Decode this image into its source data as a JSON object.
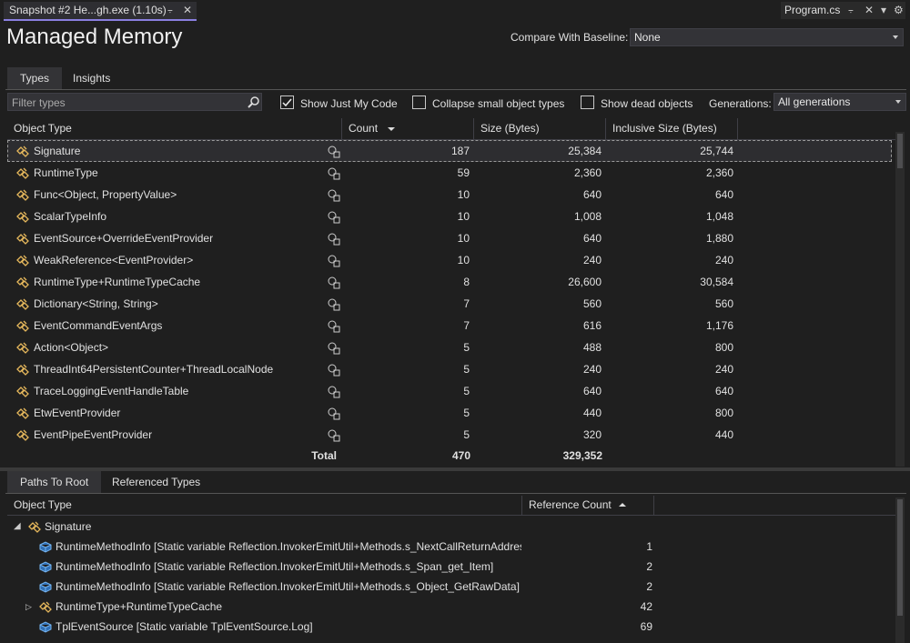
{
  "tabs": {
    "active": "Snapshot #2 He...gh.exe (1.10s)",
    "other": "Program.cs"
  },
  "title": "Managed Memory",
  "baseline": {
    "label": "Compare With Baseline:",
    "value": "None"
  },
  "view_tabs": [
    "Types",
    "Insights"
  ],
  "toolbar": {
    "filter_placeholder": "Filter types",
    "just_my_code": "Show Just My Code",
    "collapse_small": "Collapse small object types",
    "show_dead": "Show dead objects",
    "generations_label": "Generations:",
    "generations_value": "All generations"
  },
  "types_table": {
    "columns": [
      "Object Type",
      "Count",
      "Size (Bytes)",
      "Inclusive Size (Bytes)"
    ],
    "rows": [
      [
        "Signature",
        "187",
        "25,384",
        "25,744"
      ],
      [
        "RuntimeType",
        "59",
        "2,360",
        "2,360"
      ],
      [
        "Func<Object, PropertyValue>",
        "10",
        "640",
        "640"
      ],
      [
        "ScalarTypeInfo",
        "10",
        "1,008",
        "1,048"
      ],
      [
        "EventSource+OverrideEventProvider",
        "10",
        "640",
        "1,880"
      ],
      [
        "WeakReference<EventProvider>",
        "10",
        "240",
        "240"
      ],
      [
        "RuntimeType+RuntimeTypeCache",
        "8",
        "26,600",
        "30,584"
      ],
      [
        "Dictionary<String, String>",
        "7",
        "560",
        "560"
      ],
      [
        "EventCommandEventArgs",
        "7",
        "616",
        "1,176"
      ],
      [
        "Action<Object>",
        "5",
        "488",
        "800"
      ],
      [
        "ThreadInt64PersistentCounter+ThreadLocalNode",
        "5",
        "240",
        "240"
      ],
      [
        "TraceLoggingEventHandleTable",
        "5",
        "640",
        "640"
      ],
      [
        "EtwEventProvider",
        "5",
        "440",
        "800"
      ],
      [
        "EventPipeEventProvider",
        "5",
        "320",
        "440"
      ]
    ],
    "total": {
      "label": "Total",
      "count": "470",
      "size": "329,352"
    }
  },
  "bottom_tabs": [
    "Paths To Root",
    "Referenced Types"
  ],
  "paths_table": {
    "columns": [
      "Object Type",
      "Reference Count"
    ],
    "root": "Signature",
    "rows": [
      [
        "RuntimeMethodInfo [Static variable Reflection.InvokerEmitUtil+Methods.s_NextCallReturnAddres",
        "1"
      ],
      [
        "RuntimeMethodInfo [Static variable Reflection.InvokerEmitUtil+Methods.s_Span_get_Item]",
        "2"
      ],
      [
        "RuntimeMethodInfo [Static variable Reflection.InvokerEmitUtil+Methods.s_Object_GetRawData]",
        "2"
      ],
      [
        "RuntimeType+RuntimeTypeCache",
        "42"
      ],
      [
        "TplEventSource [Static variable TplEventSource.Log]",
        "69"
      ]
    ]
  }
}
